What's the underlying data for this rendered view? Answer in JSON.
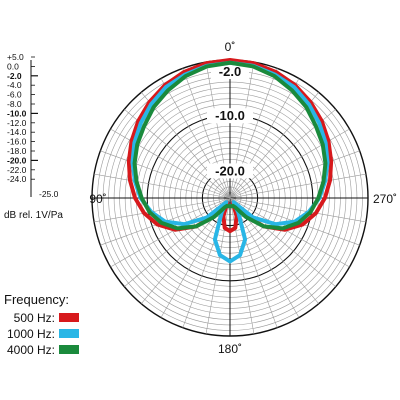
{
  "chart_data": {
    "type": "polar",
    "angle_labels": [
      "0˚",
      "90˚",
      "180˚",
      "270˚"
    ],
    "ring_labels": [
      "-2.0",
      "-10.0",
      "-20.0"
    ],
    "grid": true,
    "radial_range_db": [
      -25,
      0
    ],
    "scale_labels": [
      "+5.0",
      "0.0",
      "-2.0",
      "-4.0",
      "-6.0",
      "-8.0",
      "-10.0",
      "-12.0",
      "-14.0",
      "-16.0",
      "-18.0",
      "-20.0",
      "-22.0",
      "-24.0",
      "-25.0"
    ],
    "scale_unit": "dB rel. 1V/Pa",
    "legend": {
      "title": "Frequency:",
      "entries": [
        {
          "label": "500 Hz:",
          "color": "#d7191c"
        },
        {
          "label": "1000 Hz:",
          "color": "#29b6e6"
        },
        {
          "label": "4000 Hz:",
          "color": "#1a8a3c"
        }
      ]
    },
    "series": [
      {
        "name": "500 Hz",
        "color": "#d7191c",
        "theta_deg": [
          0,
          10,
          20,
          30,
          40,
          50,
          60,
          70,
          80,
          90,
          100,
          110,
          120,
          130,
          140,
          150,
          160,
          170,
          180
        ],
        "r_db": [
          0.0,
          -0.2,
          -0.7,
          -1.4,
          -2.3,
          -3.3,
          -4.4,
          -5.5,
          -6.6,
          -7.8,
          -9.2,
          -11.0,
          -13.5,
          -17.0,
          -21.0,
          -24.0,
          -21.5,
          -19.5,
          -19.0
        ]
      },
      {
        "name": "1000 Hz",
        "color": "#29b6e6",
        "theta_deg": [
          0,
          10,
          20,
          30,
          40,
          50,
          60,
          70,
          80,
          90,
          100,
          110,
          120,
          130,
          140,
          150,
          160,
          170,
          180
        ],
        "r_db": [
          -0.5,
          -0.7,
          -1.2,
          -1.8,
          -2.8,
          -3.9,
          -5.0,
          -6.2,
          -7.5,
          -8.8,
          -10.5,
          -12.5,
          -15.5,
          -19.5,
          -24.0,
          -22.0,
          -17.0,
          -14.5,
          -13.5
        ]
      },
      {
        "name": "4000 Hz",
        "color": "#1a8a3c",
        "theta_deg": [
          0,
          10,
          20,
          30,
          40,
          50,
          60,
          70,
          80,
          90,
          100,
          110,
          120,
          130,
          140,
          150,
          160,
          170,
          180
        ],
        "r_db": [
          -0.5,
          -0.8,
          -1.5,
          -2.5,
          -3.5,
          -4.7,
          -5.6,
          -6.6,
          -7.8,
          -9.0,
          -10.2,
          -11.8,
          -14.0,
          -17.0,
          -20.5,
          -23.0,
          -23.5,
          -23.5,
          -23.5
        ]
      }
    ]
  }
}
